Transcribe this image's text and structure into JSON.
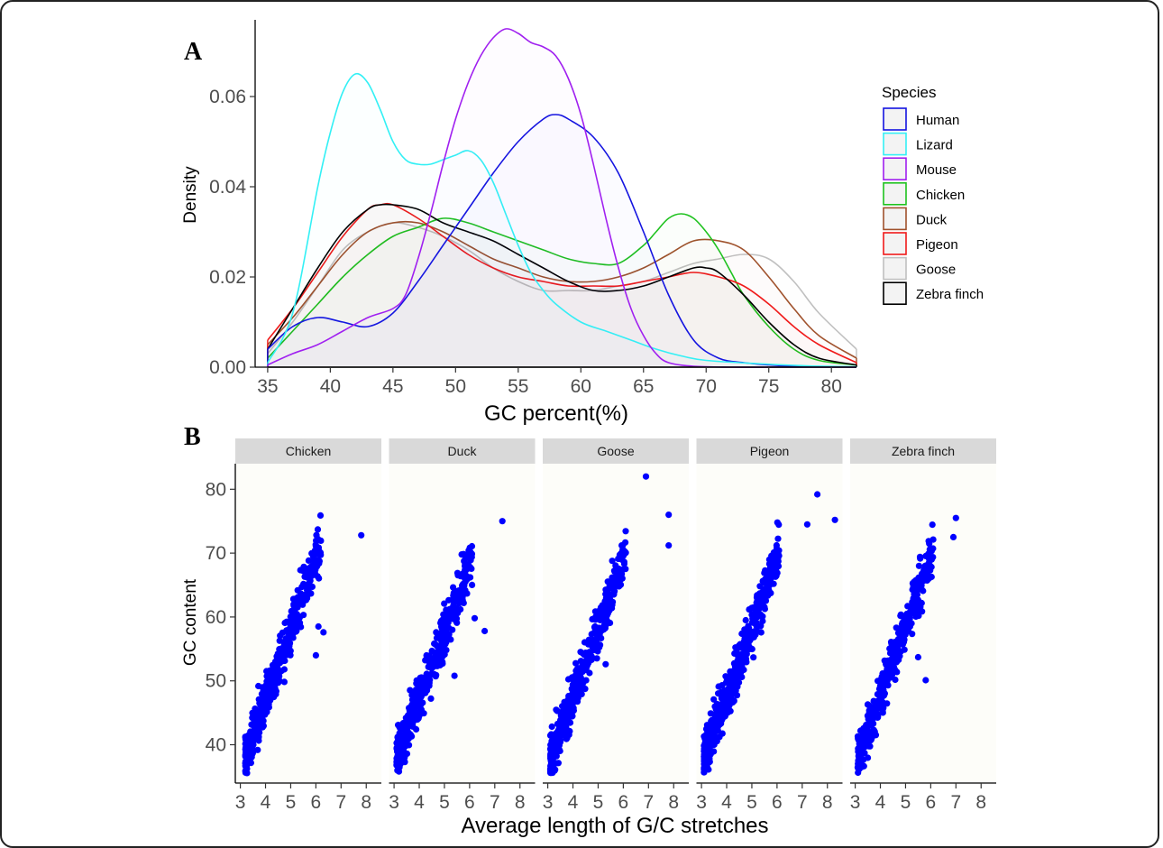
{
  "colors": {
    "Human": "#1414e0",
    "Lizard": "#33f0f5",
    "Mouse": "#a020f0",
    "Chicken": "#1fc21f",
    "Duck": "#a0522d",
    "Pigeon": "#f01a1a",
    "Goose": "#c0c0c0",
    "Zebra finch": "#000000",
    "points": "#0000ff",
    "strip_bg": "#d9d9d9",
    "panel_bg": "#fdfdf9"
  },
  "chart_data": [
    {
      "type": "line",
      "panel_label": "A",
      "xlabel": "GC percent(%)",
      "ylabel": "Density",
      "xlim": [
        34,
        82
      ],
      "ylim": [
        0,
        0.077
      ],
      "xticks": [
        35,
        40,
        45,
        50,
        55,
        60,
        65,
        70,
        75,
        80
      ],
      "yticks": [
        0.0,
        0.02,
        0.04,
        0.06
      ],
      "ytick_labels": [
        "0.00",
        "0.02",
        "0.04",
        "0.06"
      ],
      "legend": {
        "title": "Species",
        "placement": "right"
      },
      "series": [
        {
          "name": "Human",
          "x": [
            35,
            37,
            39,
            41,
            43,
            45,
            47,
            49,
            51,
            53,
            55,
            57,
            58,
            59,
            61,
            63,
            65,
            67,
            69,
            71,
            73,
            75,
            77,
            80,
            82
          ],
          "y": [
            0.004,
            0.009,
            0.011,
            0.01,
            0.009,
            0.012,
            0.019,
            0.027,
            0.035,
            0.043,
            0.05,
            0.055,
            0.056,
            0.055,
            0.051,
            0.043,
            0.03,
            0.016,
            0.006,
            0.002,
            0.001,
            0.0005,
            0.0002,
            0.0001,
            0.0
          ]
        },
        {
          "name": "Lizard",
          "x": [
            35,
            37,
            39,
            40,
            41,
            42,
            43,
            44,
            45,
            46,
            47,
            48,
            49,
            50,
            51,
            52,
            53,
            54,
            55,
            56,
            57,
            58,
            60,
            62,
            64,
            66,
            68,
            70,
            74,
            78,
            82
          ],
          "y": [
            0.001,
            0.012,
            0.04,
            0.052,
            0.061,
            0.065,
            0.063,
            0.057,
            0.05,
            0.046,
            0.045,
            0.045,
            0.046,
            0.047,
            0.048,
            0.046,
            0.041,
            0.034,
            0.027,
            0.021,
            0.017,
            0.014,
            0.01,
            0.008,
            0.006,
            0.004,
            0.0025,
            0.0015,
            0.0008,
            0.0003,
            0.0001
          ]
        },
        {
          "name": "Mouse",
          "x": [
            35,
            37,
            39,
            41,
            43,
            45,
            46,
            47,
            48,
            49,
            50,
            51,
            52,
            53,
            54,
            55,
            56,
            57,
            58,
            59,
            60,
            61,
            62,
            63,
            64,
            65,
            66,
            67,
            69,
            72,
            76,
            82
          ],
          "y": [
            0.0005,
            0.003,
            0.005,
            0.008,
            0.011,
            0.013,
            0.016,
            0.024,
            0.034,
            0.045,
            0.055,
            0.063,
            0.069,
            0.073,
            0.075,
            0.074,
            0.072,
            0.071,
            0.069,
            0.064,
            0.056,
            0.045,
            0.033,
            0.022,
            0.013,
            0.007,
            0.003,
            0.001,
            0.0002,
            0.0,
            0.0,
            0.0
          ]
        },
        {
          "name": "Chicken",
          "x": [
            35,
            37,
            39,
            41,
            43,
            45,
            47,
            49,
            51,
            53,
            55,
            57,
            59,
            61,
            63,
            65,
            66,
            67,
            68,
            69,
            70,
            71,
            72,
            73,
            75,
            77,
            79,
            82
          ],
          "y": [
            0.002,
            0.008,
            0.014,
            0.02,
            0.025,
            0.029,
            0.031,
            0.033,
            0.032,
            0.03,
            0.028,
            0.026,
            0.024,
            0.023,
            0.023,
            0.027,
            0.03,
            0.033,
            0.034,
            0.033,
            0.03,
            0.026,
            0.021,
            0.016,
            0.009,
            0.004,
            0.0015,
            0.0005
          ]
        },
        {
          "name": "Duck",
          "x": [
            35,
            37,
            39,
            41,
            43,
            45,
            47,
            49,
            51,
            53,
            55,
            57,
            59,
            61,
            63,
            65,
            67,
            69,
            71,
            73,
            75,
            77,
            79,
            82
          ],
          "y": [
            0.005,
            0.011,
            0.018,
            0.025,
            0.03,
            0.032,
            0.032,
            0.03,
            0.027,
            0.024,
            0.022,
            0.02,
            0.019,
            0.019,
            0.02,
            0.022,
            0.025,
            0.028,
            0.028,
            0.026,
            0.02,
            0.013,
            0.007,
            0.002
          ]
        },
        {
          "name": "Pigeon",
          "x": [
            35,
            37,
            39,
            41,
            43,
            44,
            45,
            47,
            49,
            51,
            53,
            55,
            57,
            59,
            61,
            63,
            65,
            67,
            69,
            71,
            73,
            75,
            77,
            79,
            82
          ],
          "y": [
            0.006,
            0.013,
            0.021,
            0.029,
            0.035,
            0.036,
            0.036,
            0.033,
            0.029,
            0.025,
            0.022,
            0.02,
            0.019,
            0.018,
            0.018,
            0.018,
            0.019,
            0.02,
            0.021,
            0.02,
            0.018,
            0.014,
            0.009,
            0.005,
            0.001
          ]
        },
        {
          "name": "Goose",
          "x": [
            35,
            37,
            39,
            41,
            43,
            45,
            47,
            49,
            51,
            53,
            55,
            57,
            59,
            61,
            63,
            65,
            67,
            69,
            71,
            73,
            75,
            77,
            79,
            82
          ],
          "y": [
            0.003,
            0.01,
            0.018,
            0.026,
            0.03,
            0.032,
            0.031,
            0.029,
            0.026,
            0.022,
            0.019,
            0.017,
            0.017,
            0.017,
            0.018,
            0.019,
            0.021,
            0.023,
            0.024,
            0.025,
            0.024,
            0.019,
            0.012,
            0.004
          ]
        },
        {
          "name": "Zebra finch",
          "x": [
            35,
            37,
            39,
            41,
            43,
            44,
            45,
            47,
            49,
            51,
            53,
            55,
            57,
            59,
            61,
            63,
            65,
            67,
            69,
            70,
            71,
            73,
            75,
            77,
            79,
            82
          ],
          "y": [
            0.004,
            0.013,
            0.022,
            0.03,
            0.035,
            0.036,
            0.036,
            0.035,
            0.032,
            0.03,
            0.028,
            0.025,
            0.022,
            0.019,
            0.017,
            0.017,
            0.018,
            0.02,
            0.022,
            0.022,
            0.021,
            0.016,
            0.01,
            0.005,
            0.002,
            0.0005
          ]
        }
      ]
    },
    {
      "type": "scatter",
      "panel_label": "B",
      "xlabel": "Average length of G/C stretches",
      "ylabel": "GC content",
      "xlim": [
        2.8,
        8.6
      ],
      "ylim": [
        34,
        84
      ],
      "xticks": [
        3,
        4,
        5,
        6,
        7,
        8
      ],
      "yticks": [
        40,
        50,
        60,
        70,
        80
      ],
      "facets": [
        {
          "name": "Chicken",
          "n_points": 420,
          "x_min": 3.2,
          "main_slope": 11.0,
          "outliers": [
            [
              7.8,
              72.8
            ],
            [
              6.0,
              54.0
            ],
            [
              6.3,
              57.6
            ],
            [
              6.1,
              58.5
            ]
          ]
        },
        {
          "name": "Duck",
          "n_points": 420,
          "x_min": 3.1,
          "main_slope": 10.4,
          "outliers": [
            [
              6.6,
              57.8
            ],
            [
              6.2,
              59.8
            ],
            [
              5.4,
              50.8
            ],
            [
              7.3,
              75.0
            ]
          ]
        },
        {
          "name": "Goose",
          "n_points": 460,
          "x_min": 3.1,
          "main_slope": 10.6,
          "outliers": [
            [
              7.8,
              76.0
            ],
            [
              7.8,
              71.2
            ],
            [
              5.3,
              52.6
            ],
            [
              6.9,
              82.0
            ]
          ]
        },
        {
          "name": "Pigeon",
          "n_points": 450,
          "x_min": 3.1,
          "main_slope": 10.8,
          "outliers": [
            [
              8.3,
              75.2
            ],
            [
              7.6,
              79.2
            ],
            [
              7.2,
              74.5
            ],
            [
              4.6,
              50.6
            ]
          ]
        },
        {
          "name": "Zebra finch",
          "n_points": 440,
          "x_min": 3.1,
          "main_slope": 10.8,
          "outliers": [
            [
              5.8,
              50.1
            ],
            [
              5.5,
              53.7
            ],
            [
              7.0,
              75.5
            ],
            [
              6.9,
              72.5
            ]
          ]
        }
      ]
    }
  ]
}
